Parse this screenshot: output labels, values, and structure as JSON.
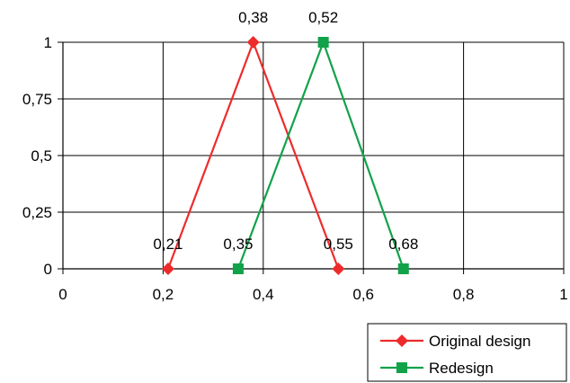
{
  "chart_data": {
    "type": "line",
    "title": "",
    "xlabel": "",
    "ylabel": "",
    "xlim": [
      0,
      1
    ],
    "ylim": [
      0,
      1
    ],
    "xticks": [
      0,
      0.2,
      0.4,
      0.6,
      0.8,
      1
    ],
    "yticks": [
      0,
      0.25,
      0.5,
      0.75,
      1
    ],
    "xtick_labels": [
      "0",
      "0,2",
      "0,4",
      "0,6",
      "0,8",
      "1"
    ],
    "ytick_labels": [
      "0",
      "0,25",
      "0,5",
      "0,75",
      "1"
    ],
    "grid": true,
    "legend_position": "bottom-right",
    "series": [
      {
        "name": "Original design",
        "color": "#ee2b2b",
        "marker": "diamond",
        "x": [
          0.21,
          0.38,
          0.55
        ],
        "y": [
          0,
          1,
          0
        ],
        "data_labels": [
          "0,21",
          "0,38",
          "0,55"
        ]
      },
      {
        "name": "Redesign",
        "color": "#12a24a",
        "marker": "square",
        "x": [
          0.35,
          0.52,
          0.68
        ],
        "y": [
          0,
          1,
          0
        ],
        "data_labels": [
          "0,35",
          "0,52",
          "0,68"
        ]
      }
    ]
  }
}
